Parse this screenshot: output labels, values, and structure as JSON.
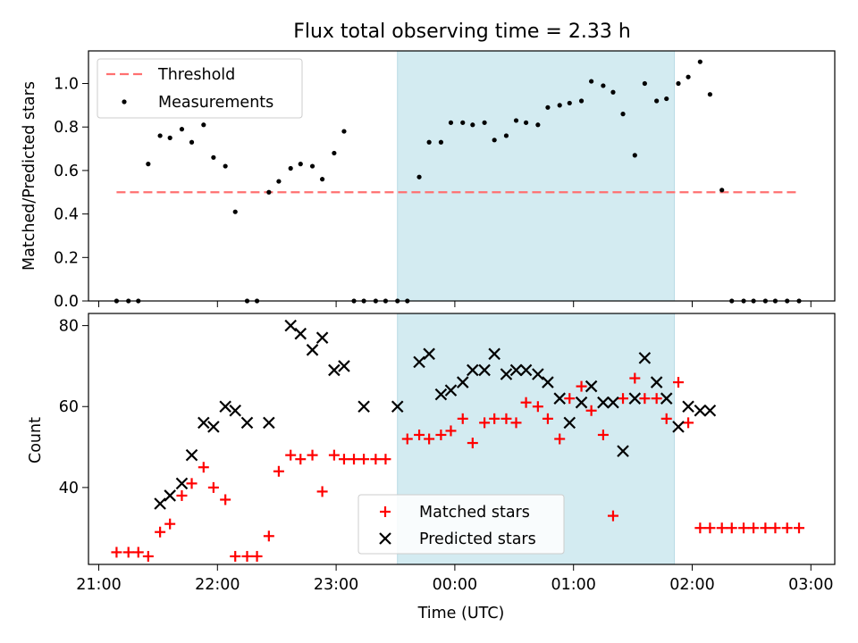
{
  "chart_data": [
    {
      "type": "scatter",
      "title": "Flux total observing time = 2.33 h",
      "ylabel": "Matched/Predicted stars",
      "xlabel": "",
      "ylim": [
        0,
        1.15
      ],
      "yticks": [
        "0.0",
        "0.2",
        "0.4",
        "0.6",
        "0.8",
        "1.0"
      ],
      "highlight_span": [
        "23:31",
        "01:51"
      ],
      "highlight_color": "#d3ebf1",
      "threshold": {
        "name": "Threshold",
        "value": 0.5,
        "x_start": "21:09",
        "x_end": "02:54",
        "color": "#ff7070"
      },
      "legend": {
        "location": "upper left",
        "entries": [
          "Threshold",
          "Measurements"
        ]
      },
      "series": [
        {
          "name": "Measurements",
          "color": "#000000",
          "x": [
            "21:09",
            "21:15",
            "21:20",
            "21:25",
            "21:31",
            "21:36",
            "21:42",
            "21:47",
            "21:53",
            "21:58",
            "22:04",
            "22:09",
            "22:15",
            "22:20",
            "22:26",
            "22:31",
            "22:37",
            "22:42",
            "22:48",
            "22:53",
            "22:59",
            "23:04",
            "23:09",
            "23:14",
            "23:20",
            "23:25",
            "23:31",
            "23:36",
            "23:42",
            "23:47",
            "23:53",
            "23:58",
            "00:04",
            "00:09",
            "00:15",
            "00:20",
            "00:26",
            "00:31",
            "00:36",
            "00:42",
            "00:47",
            "00:53",
            "00:58",
            "01:04",
            "01:09",
            "01:15",
            "01:20",
            "01:25",
            "01:31",
            "01:36",
            "01:42",
            "01:47",
            "01:53",
            "01:58",
            "02:04",
            "02:09",
            "02:15",
            "02:20",
            "02:26",
            "02:31",
            "02:37",
            "02:42",
            "02:48",
            "02:54"
          ],
          "y": [
            0,
            0,
            0,
            0.63,
            0.76,
            0.75,
            0.79,
            0.73,
            0.81,
            0.66,
            0.62,
            0.41,
            0,
            0,
            0.5,
            0.55,
            0.61,
            0.63,
            0.62,
            0.56,
            0.68,
            0.78,
            0,
            0,
            0,
            0,
            0,
            0,
            0.57,
            0.73,
            0.73,
            0.82,
            0.82,
            0.81,
            0.82,
            0.74,
            0.76,
            0.83,
            0.82,
            0.81,
            0.89,
            0.9,
            0.91,
            0.92,
            1.01,
            0.99,
            0.96,
            0.86,
            0.67,
            1.0,
            0.92,
            0.93,
            1.0,
            1.03,
            1.1,
            0.95,
            0.51,
            0,
            0,
            0,
            0,
            0,
            0,
            0
          ]
        }
      ]
    },
    {
      "type": "scatter",
      "xlabel": "Time (UTC)",
      "ylabel": "Count",
      "ylim": [
        21,
        83
      ],
      "yticks": [
        "40",
        "60",
        "80"
      ],
      "xticks": [
        "21:00",
        "22:00",
        "23:00",
        "00:00",
        "01:00",
        "02:00",
        "03:00"
      ],
      "legend": {
        "location": "lower center",
        "entries": [
          "Matched stars",
          "Predicted stars"
        ]
      },
      "series": [
        {
          "name": "Matched stars",
          "marker": "+",
          "color": "#ff0000",
          "x": [
            "21:09",
            "21:15",
            "21:20",
            "21:25",
            "21:31",
            "21:36",
            "21:42",
            "21:47",
            "21:53",
            "21:58",
            "22:04",
            "22:09",
            "22:15",
            "22:20",
            "22:26",
            "22:31",
            "22:37",
            "22:42",
            "22:48",
            "22:53",
            "22:59",
            "23:04",
            "23:09",
            "23:14",
            "23:20",
            "23:25",
            "23:36",
            "23:42",
            "23:47",
            "23:53",
            "23:58",
            "00:04",
            "00:09",
            "00:15",
            "00:20",
            "00:26",
            "00:31",
            "00:36",
            "00:42",
            "00:47",
            "00:53",
            "00:58",
            "01:04",
            "01:09",
            "01:15",
            "01:20",
            "01:25",
            "01:31",
            "01:36",
            "01:42",
            "01:47",
            "01:53",
            "01:58",
            "02:04",
            "02:09",
            "02:15",
            "02:20",
            "02:26",
            "02:31",
            "02:37",
            "02:42",
            "02:48",
            "02:54"
          ],
          "y": [
            24,
            24,
            24,
            23,
            29,
            31,
            38,
            41,
            45,
            40,
            37,
            23,
            23,
            23,
            28,
            44,
            48,
            47,
            48,
            39,
            48,
            47,
            47,
            47,
            47,
            47,
            52,
            53,
            52,
            53,
            54,
            57,
            51,
            56,
            57,
            57,
            56,
            61,
            60,
            57,
            52,
            62,
            65,
            59,
            53,
            33,
            62,
            67,
            62,
            62,
            57,
            66,
            56,
            30,
            30,
            30,
            30,
            30,
            30,
            30,
            30,
            30,
            30
          ],
          "extra_points": [
            {
              "x": "21:09",
              "y": 24
            }
          ]
        },
        {
          "name": "Predicted stars",
          "marker": "x",
          "color": "#000000",
          "x": [
            "21:31",
            "21:36",
            "21:42",
            "21:47",
            "21:53",
            "21:58",
            "22:04",
            "22:09",
            "22:15",
            "22:26",
            "22:37",
            "22:42",
            "22:48",
            "22:53",
            "22:59",
            "23:04",
            "23:14",
            "23:31",
            "23:42",
            "23:47",
            "23:53",
            "23:58",
            "00:04",
            "00:09",
            "00:15",
            "00:20",
            "00:26",
            "00:31",
            "00:36",
            "00:42",
            "00:47",
            "00:53",
            "00:58",
            "01:04",
            "01:09",
            "01:15",
            "01:20",
            "01:25",
            "01:31",
            "01:36",
            "01:42",
            "01:47",
            "01:53",
            "01:58",
            "02:04",
            "02:09"
          ],
          "y": [
            36,
            38,
            41,
            48,
            56,
            55,
            60,
            59,
            56,
            56,
            80,
            78,
            74,
            77,
            69,
            70,
            60,
            60,
            71,
            73,
            63,
            64,
            66,
            69,
            69,
            73,
            68,
            69,
            69,
            68,
            66,
            62,
            56,
            61,
            65,
            61,
            61,
            49,
            62,
            72,
            66,
            62,
            55,
            60,
            59,
            59
          ]
        }
      ]
    }
  ],
  "legend_labels": {
    "threshold": "Threshold",
    "measurements": "Measurements",
    "matched": "Matched stars",
    "predicted": "Predicted stars"
  }
}
